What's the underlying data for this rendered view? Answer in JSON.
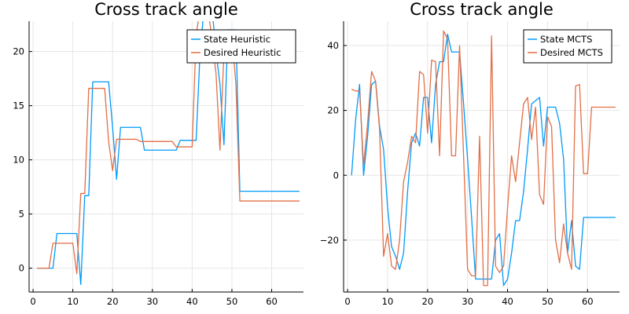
{
  "chart_data": [
    {
      "type": "line",
      "title": "Cross track angle",
      "xlabel": "",
      "ylabel": "",
      "xlim": [
        -1,
        68
      ],
      "ylim": [
        -2.2,
        22.8
      ],
      "xticks": [
        0,
        10,
        20,
        30,
        40,
        50,
        60
      ],
      "yticks": [
        0,
        5,
        10,
        15,
        20
      ],
      "grid": true,
      "legend_position": "top-right",
      "series": [
        {
          "name": "State Heuristic",
          "color": "#009af9",
          "x": [
            1,
            2,
            3,
            4,
            5,
            6,
            7,
            8,
            9,
            10,
            11,
            12,
            13,
            14,
            15,
            16,
            17,
            18,
            19,
            20,
            21,
            22,
            23,
            24,
            25,
            26,
            27,
            28,
            29,
            30,
            31,
            32,
            33,
            34,
            35,
            36,
            37,
            38,
            39,
            40,
            41,
            42,
            43,
            44,
            45,
            46,
            47,
            48,
            49,
            50,
            51,
            52,
            53,
            54,
            55,
            56,
            57,
            58,
            59,
            60,
            61,
            62,
            63,
            64,
            65,
            66,
            67
          ],
          "y": [
            0,
            0,
            0,
            0,
            0,
            3.2,
            3.2,
            3.2,
            3.2,
            3.2,
            3.2,
            -1.5,
            6.7,
            6.7,
            17.2,
            17.2,
            17.2,
            17.2,
            17.2,
            13,
            8.2,
            13,
            13,
            13,
            13,
            13,
            13,
            10.9,
            10.9,
            10.9,
            10.9,
            10.9,
            10.9,
            10.9,
            10.9,
            10.9,
            11.8,
            11.8,
            11.8,
            11.8,
            11.8,
            20,
            24,
            24,
            24,
            20,
            17,
            11.4,
            22,
            22,
            22,
            7.1,
            7.1,
            7.1,
            7.1,
            7.1,
            7.1,
            7.1,
            7.1,
            7.1,
            7.1,
            7.1,
            7.1,
            7.1,
            7.1,
            7.1,
            7.1
          ]
        },
        {
          "name": "Desired Heuristic",
          "color": "#e26f46",
          "x": [
            1,
            2,
            3,
            4,
            5,
            6,
            7,
            8,
            9,
            10,
            11,
            12,
            13,
            14,
            15,
            16,
            17,
            18,
            19,
            20,
            21,
            22,
            23,
            24,
            25,
            26,
            27,
            28,
            29,
            30,
            31,
            32,
            33,
            34,
            35,
            36,
            37,
            38,
            39,
            40,
            41,
            42,
            43,
            44,
            45,
            46,
            47,
            48,
            49,
            50,
            51,
            52,
            53,
            54,
            55,
            56,
            57,
            58,
            59,
            60,
            61,
            62,
            63,
            64,
            65,
            66,
            67
          ],
          "y": [
            0,
            0,
            0,
            0,
            2.3,
            2.3,
            2.3,
            2.3,
            2.3,
            2.3,
            -0.5,
            6.9,
            6.9,
            16.6,
            16.6,
            16.6,
            16.6,
            16.6,
            11.7,
            9,
            11.9,
            11.9,
            11.9,
            11.9,
            11.9,
            11.9,
            11.7,
            11.7,
            11.7,
            11.7,
            11.7,
            11.7,
            11.7,
            11.7,
            11.7,
            11.2,
            11.2,
            11.2,
            11.2,
            11.2,
            21.5,
            24,
            24,
            24,
            21,
            18,
            10.9,
            20,
            21.5,
            21.5,
            17,
            6.2,
            6.2,
            6.2,
            6.2,
            6.2,
            6.2,
            6.2,
            6.2,
            6.2,
            6.2,
            6.2,
            6.2,
            6.2,
            6.2,
            6.2,
            6.2
          ]
        }
      ]
    },
    {
      "type": "line",
      "title": "Cross track angle",
      "xlabel": "",
      "ylabel": "",
      "xlim": [
        -1,
        68
      ],
      "ylim": [
        -36,
        47.5
      ],
      "xticks": [
        0,
        10,
        20,
        30,
        40,
        50,
        60
      ],
      "yticks": [
        -20,
        0,
        20,
        40
      ],
      "grid": true,
      "legend_position": "top-right",
      "series": [
        {
          "name": "State MCTS",
          "color": "#009af9",
          "x": [
            1,
            2,
            3,
            4,
            5,
            6,
            7,
            8,
            9,
            10,
            11,
            12,
            13,
            14,
            15,
            16,
            17,
            18,
            19,
            20,
            21,
            22,
            23,
            24,
            25,
            26,
            27,
            28,
            29,
            30,
            31,
            32,
            33,
            34,
            35,
            36,
            37,
            38,
            39,
            40,
            41,
            42,
            43,
            44,
            45,
            46,
            47,
            48,
            49,
            50,
            51,
            52,
            53,
            54,
            55,
            56,
            57,
            58,
            59,
            60,
            61,
            62,
            63,
            64,
            65,
            66,
            67
          ],
          "y": [
            0,
            17,
            28,
            0,
            12,
            28,
            29,
            15,
            8,
            -10,
            -22,
            -25,
            -29,
            -24,
            -5,
            10,
            13,
            9,
            24,
            24,
            10,
            28,
            35,
            35,
            43.5,
            38,
            38,
            38,
            22,
            5,
            -13,
            -32,
            -32,
            -32,
            -32,
            -32,
            -20,
            -18,
            -34,
            -32,
            -24,
            -14,
            -14,
            -5,
            8,
            22,
            23,
            24,
            9,
            21,
            21,
            21,
            16,
            5,
            -24,
            -14,
            -28,
            -29,
            -13,
            -13,
            -13,
            -13,
            -13,
            -13,
            -13,
            -13,
            -13
          ]
        },
        {
          "name": "Desired MCTS",
          "color": "#e26f46",
          "x": [
            1,
            2,
            3,
            4,
            5,
            6,
            7,
            8,
            9,
            10,
            11,
            12,
            13,
            14,
            15,
            16,
            17,
            18,
            19,
            20,
            21,
            22,
            23,
            24,
            25,
            26,
            27,
            28,
            29,
            30,
            31,
            32,
            33,
            34,
            35,
            36,
            37,
            38,
            39,
            40,
            41,
            42,
            43,
            44,
            45,
            46,
            47,
            48,
            49,
            50,
            51,
            52,
            53,
            54,
            55,
            56,
            57,
            58,
            59,
            60,
            61,
            62,
            63,
            64,
            65,
            66,
            67
          ],
          "y": [
            26.5,
            26,
            26,
            3,
            16,
            32,
            29,
            14,
            -25,
            -18,
            -28,
            -29,
            -20,
            -2,
            4,
            12,
            10,
            32,
            31,
            13,
            35.5,
            35,
            6,
            44.5,
            42,
            6,
            6,
            40,
            6,
            -29,
            -31,
            -31,
            12,
            -34,
            -34,
            43,
            -28,
            -30,
            -28,
            -10,
            6,
            -2,
            10,
            22,
            24,
            11,
            21,
            -6,
            -9,
            18,
            15,
            -20,
            -27,
            -15,
            -24,
            -29,
            27.5,
            28,
            0.5,
            0.5,
            21,
            21,
            21,
            21,
            21,
            21,
            21
          ]
        }
      ]
    }
  ]
}
